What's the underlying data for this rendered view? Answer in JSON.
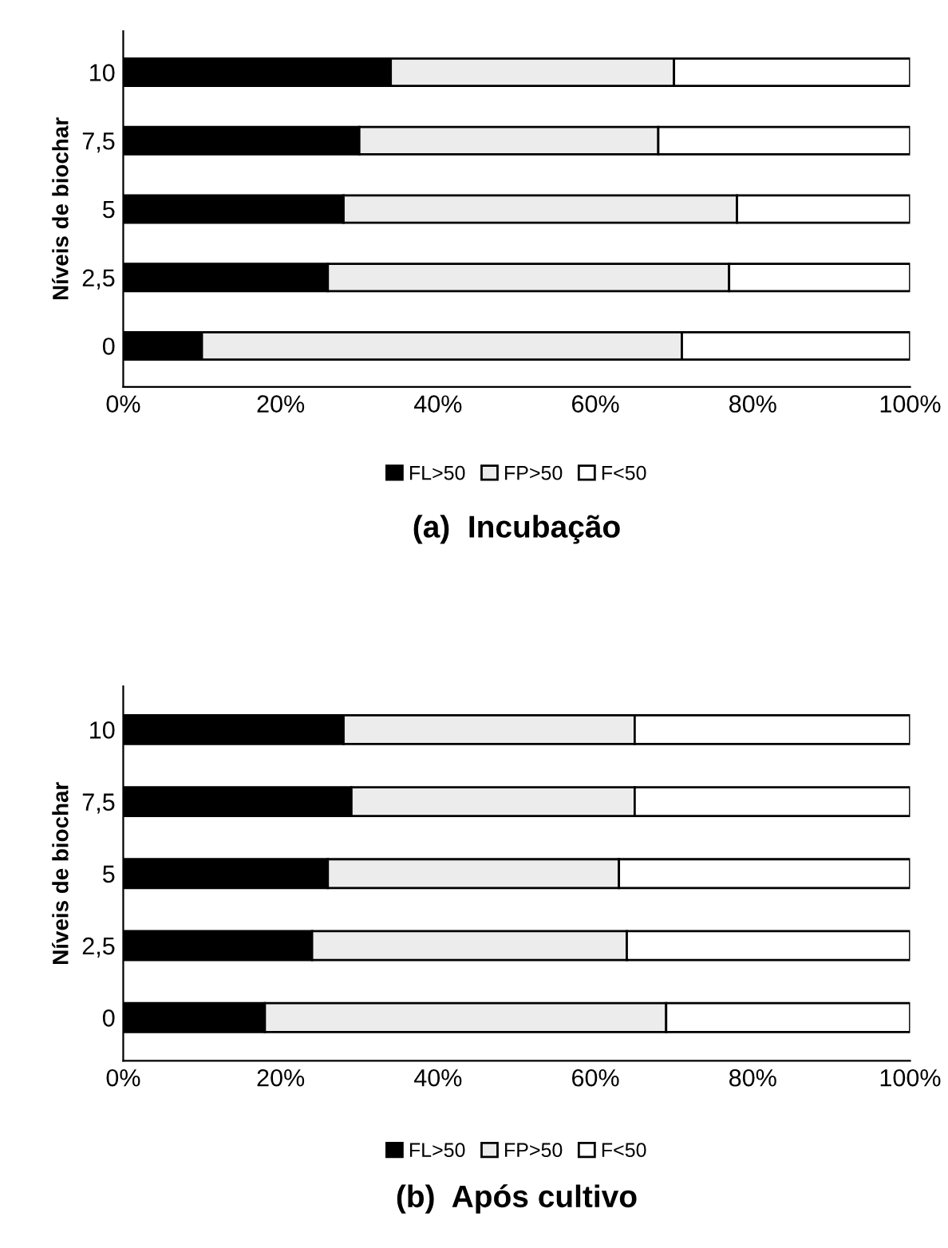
{
  "chart_data": [
    {
      "type": "bar",
      "orientation": "horizontal",
      "stacked": true,
      "title": "(a)  Incubação",
      "ylabel": "Níveis de biochar",
      "categories": [
        "10",
        "7,5",
        "5",
        "2,5",
        "0"
      ],
      "series": [
        {
          "name": "FL>50",
          "color": "#000000",
          "values": [
            34,
            30,
            28,
            26,
            10
          ]
        },
        {
          "name": "FP>50",
          "color": "#ececec",
          "values": [
            36,
            38,
            50,
            51,
            61
          ]
        },
        {
          "name": "F<50",
          "color": "#ffffff",
          "values": [
            30,
            32,
            22,
            23,
            29
          ]
        }
      ],
      "xlim": [
        0,
        100
      ],
      "xticks": [
        {
          "value": 0,
          "label": "0%"
        },
        {
          "value": 20,
          "label": "20%"
        },
        {
          "value": 40,
          "label": "40%"
        },
        {
          "value": 60,
          "label": "60%"
        },
        {
          "value": 80,
          "label": "80%"
        },
        {
          "value": 100,
          "label": "100%"
        }
      ],
      "grid": false,
      "legend": "bottom"
    },
    {
      "type": "bar",
      "orientation": "horizontal",
      "stacked": true,
      "title": "(b)  Após cultivo",
      "ylabel": "Níveis de biochar",
      "categories": [
        "10",
        "7,5",
        "5",
        "2,5",
        "0"
      ],
      "series": [
        {
          "name": "FL>50",
          "color": "#000000",
          "values": [
            28,
            29,
            26,
            24,
            18
          ]
        },
        {
          "name": "FP>50",
          "color": "#ececec",
          "values": [
            37,
            36,
            37,
            40,
            51
          ]
        },
        {
          "name": "F<50",
          "color": "#ffffff",
          "values": [
            35,
            35,
            37,
            36,
            31
          ]
        }
      ],
      "xlim": [
        0,
        100
      ],
      "xticks": [
        {
          "value": 0,
          "label": "0%"
        },
        {
          "value": 20,
          "label": "20%"
        },
        {
          "value": 40,
          "label": "40%"
        },
        {
          "value": 60,
          "label": "60%"
        },
        {
          "value": 80,
          "label": "80%"
        },
        {
          "value": 100,
          "label": "100%"
        }
      ],
      "grid": false,
      "legend": "bottom"
    }
  ]
}
